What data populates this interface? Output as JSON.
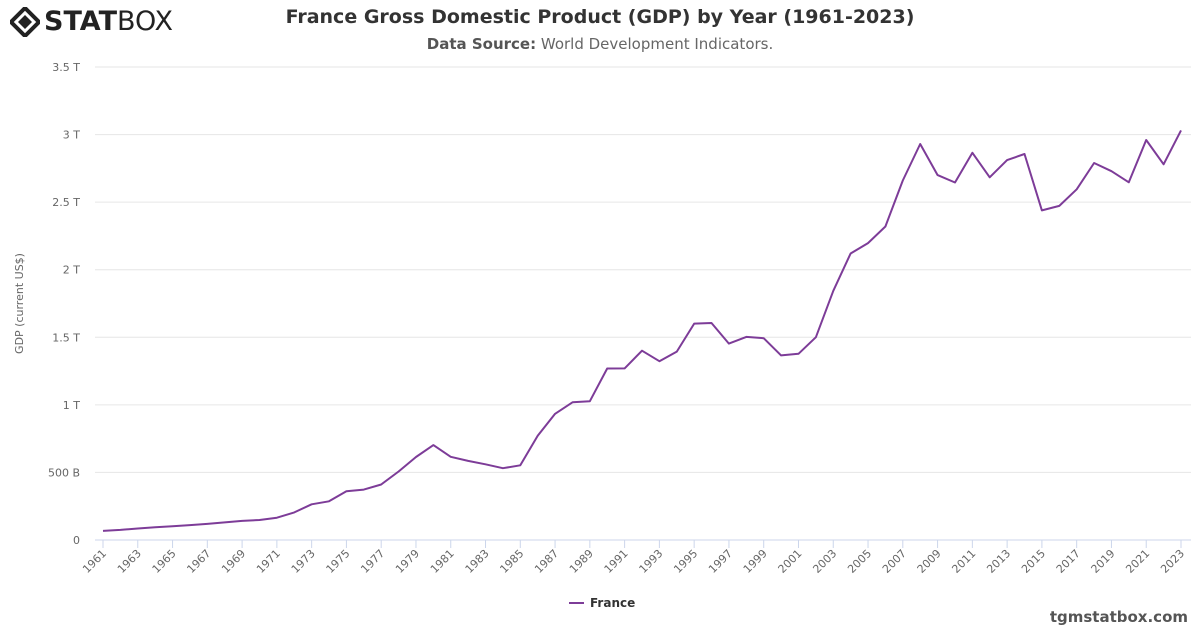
{
  "logo": {
    "text_bold": "STAT",
    "text_light": "BOX"
  },
  "credit": "tgmstatbox.com",
  "colors": {
    "series": "#7d3c98",
    "grid": "#e6e6e6",
    "text": "#333333"
  },
  "chart_data": {
    "type": "line",
    "title": "France Gross Domestic Product (GDP) by Year (1961-2023)",
    "subtitle_label": "Data Source:",
    "subtitle_text": "World Development Indicators.",
    "xlabel": "",
    "ylabel": "GDP (current US$)",
    "ylim": [
      0,
      3500000000000.0
    ],
    "yticks": [
      0,
      500000000000.0,
      1000000000000.0,
      1500000000000.0,
      2000000000000.0,
      2500000000000.0,
      3000000000000.0,
      3500000000000.0
    ],
    "ytick_labels": [
      "0",
      "500 B",
      "1 T",
      "1.5 T",
      "2 T",
      "2.5 T",
      "3 T",
      "3.5 T"
    ],
    "xtick_labels": [
      "1961",
      "1963",
      "1965",
      "1967",
      "1969",
      "1971",
      "1973",
      "1975",
      "1977",
      "1979",
      "1981",
      "1983",
      "1985",
      "1987",
      "1989",
      "1991",
      "1993",
      "1995",
      "1997",
      "1999",
      "2001",
      "2003",
      "2005",
      "2007",
      "2009",
      "2011",
      "2013",
      "2015",
      "2017",
      "2019",
      "2021",
      "2023"
    ],
    "grid": true,
    "legend_position": "bottom-center",
    "series": [
      {
        "name": "France",
        "x": [
          1961,
          1962,
          1963,
          1964,
          1965,
          1966,
          1967,
          1968,
          1969,
          1970,
          1971,
          1972,
          1973,
          1974,
          1975,
          1976,
          1977,
          1978,
          1979,
          1980,
          1981,
          1982,
          1983,
          1984,
          1985,
          1986,
          1987,
          1988,
          1989,
          1990,
          1991,
          1992,
          1993,
          1994,
          1995,
          1996,
          1997,
          1998,
          1999,
          2000,
          2001,
          2002,
          2003,
          2004,
          2005,
          2006,
          2007,
          2008,
          2009,
          2010,
          2011,
          2012,
          2013,
          2014,
          2015,
          2016,
          2017,
          2018,
          2019,
          2020,
          2021,
          2022,
          2023
        ],
        "values_trillions": [
          0.067,
          0.075,
          0.085,
          0.094,
          0.102,
          0.11,
          0.119,
          0.13,
          0.141,
          0.148,
          0.165,
          0.204,
          0.264,
          0.286,
          0.361,
          0.373,
          0.411,
          0.507,
          0.614,
          0.702,
          0.616,
          0.585,
          0.56,
          0.531,
          0.553,
          0.771,
          0.934,
          1.019,
          1.026,
          1.269,
          1.27,
          1.401,
          1.323,
          1.394,
          1.601,
          1.606,
          1.453,
          1.503,
          1.493,
          1.366,
          1.378,
          1.501,
          1.844,
          2.12,
          2.197,
          2.32,
          2.66,
          2.93,
          2.7,
          2.645,
          2.865,
          2.684,
          2.811,
          2.856,
          2.439,
          2.472,
          2.595,
          2.79,
          2.729,
          2.647,
          2.96,
          2.78,
          3.031
        ]
      }
    ]
  }
}
